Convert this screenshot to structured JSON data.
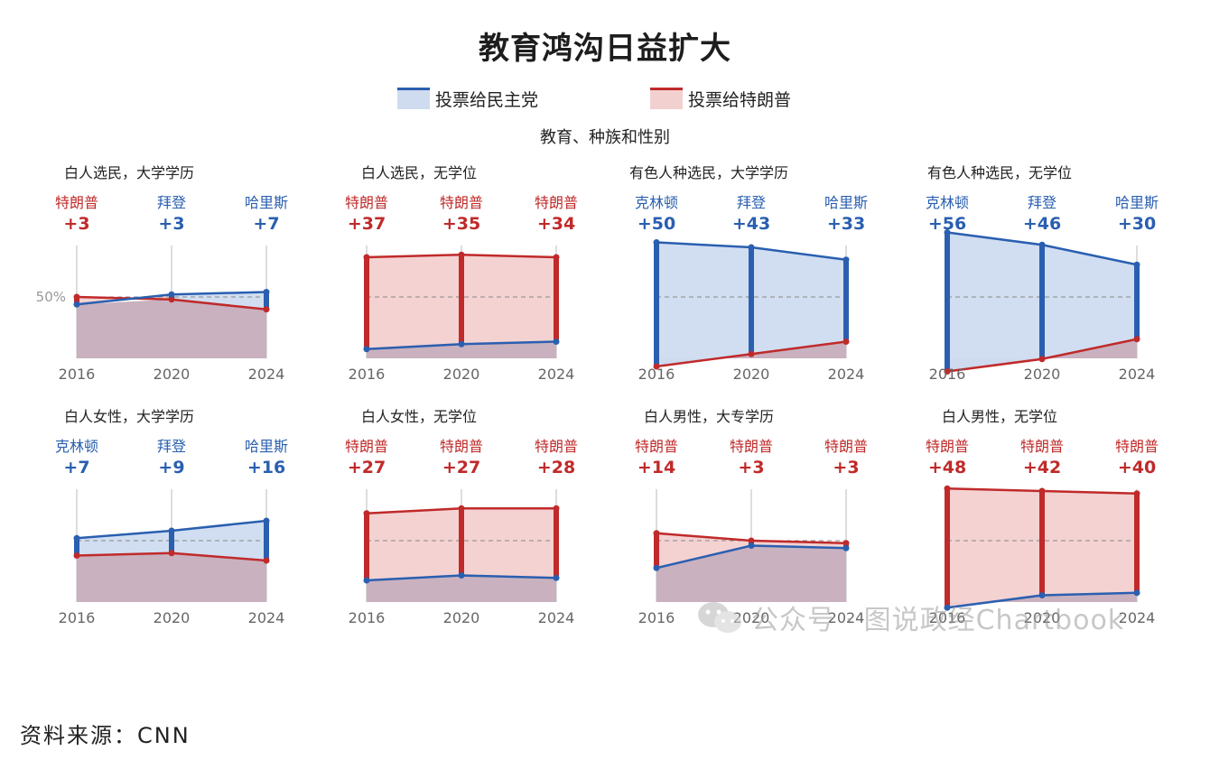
{
  "title": "教育鸿沟日益扩大",
  "subtitle": "教育、种族和性别",
  "legend": [
    {
      "label": "投票给民主党",
      "color": "#2a5fb0",
      "fill": "#cfdcf0"
    },
    {
      "label": "投票给特朗普",
      "color": "#c02a2a",
      "fill": "#f3d0d0"
    }
  ],
  "colors": {
    "dem": "#2a5fb0",
    "rep": "#c02a2a",
    "dem_fill": "#cfdcf0",
    "rep_fill": "#f3d0d0",
    "base_fill": "#c9b1bf",
    "axis": "#bbbbbb",
    "ref_line": "#888888"
  },
  "reference_label": "50%",
  "source": "资料来源：CNN",
  "watermark": "公众号 · 图说政经Chartbook",
  "chart_data": [
    {
      "type": "area",
      "title": "白人选民，大学学历",
      "x": [
        "2016",
        "2020",
        "2024"
      ],
      "series": [
        {
          "name": "",
          "values": [
            47,
            51,
            52
          ]
        },
        {
          "name": "",
          "values": [
            50,
            49,
            45
          ]
        }
      ],
      "labels": [
        {
          "name": "特朗普",
          "margin": "+3",
          "party": "rep"
        },
        {
          "name": "拜登",
          "margin": "+3",
          "party": "dem"
        },
        {
          "name": "哈里斯",
          "margin": "+7",
          "party": "dem"
        }
      ],
      "ylim": [
        0,
        100
      ]
    },
    {
      "type": "area",
      "title": "白人选民，无学位",
      "x": [
        "2016",
        "2020",
        "2024"
      ],
      "series": [
        {
          "name": "",
          "values": [
            29,
            31,
            32
          ]
        },
        {
          "name": "",
          "values": [
            66,
            67,
            66
          ]
        }
      ],
      "labels": [
        {
          "name": "特朗普",
          "margin": "+37",
          "party": "rep"
        },
        {
          "name": "特朗普",
          "margin": "+35",
          "party": "rep"
        },
        {
          "name": "特朗普",
          "margin": "+34",
          "party": "rep"
        }
      ],
      "ylim": [
        0,
        100
      ]
    },
    {
      "type": "area",
      "title": "有色人种选民，大学学历",
      "x": [
        "2016",
        "2020",
        "2024"
      ],
      "series": [
        {
          "name": "",
          "values": [
            72,
            70,
            65
          ]
        },
        {
          "name": "",
          "values": [
            22,
            27,
            32
          ]
        }
      ],
      "labels": [
        {
          "name": "克林顿",
          "margin": "+50",
          "party": "dem"
        },
        {
          "name": "拜登",
          "margin": "+43",
          "party": "dem"
        },
        {
          "name": "哈里斯",
          "margin": "+33",
          "party": "dem"
        }
      ],
      "ylim": [
        0,
        100
      ]
    },
    {
      "type": "area",
      "title": "有色人种选民，无学位",
      "x": [
        "2016",
        "2020",
        "2024"
      ],
      "series": [
        {
          "name": "",
          "values": [
            76,
            71,
            63
          ]
        },
        {
          "name": "",
          "values": [
            20,
            25,
            33
          ]
        }
      ],
      "labels": [
        {
          "name": "克林顿",
          "margin": "+56",
          "party": "dem"
        },
        {
          "name": "拜登",
          "margin": "+46",
          "party": "dem"
        },
        {
          "name": "哈里斯",
          "margin": "+30",
          "party": "dem"
        }
      ],
      "ylim": [
        0,
        100
      ]
    },
    {
      "type": "area",
      "title": "白人女性，大学学历",
      "x": [
        "2016",
        "2020",
        "2024"
      ],
      "series": [
        {
          "name": "",
          "values": [
            51,
            54,
            58
          ]
        },
        {
          "name": "",
          "values": [
            44,
            45,
            42
          ]
        }
      ],
      "labels": [
        {
          "name": "克林顿",
          "margin": "+7",
          "party": "dem"
        },
        {
          "name": "拜登",
          "margin": "+9",
          "party": "dem"
        },
        {
          "name": "哈里斯",
          "margin": "+16",
          "party": "dem"
        }
      ],
      "ylim": [
        0,
        100
      ]
    },
    {
      "type": "area",
      "title": "白人女性，无学位",
      "x": [
        "2016",
        "2020",
        "2024"
      ],
      "series": [
        {
          "name": "",
          "values": [
            34,
            36,
            35
          ]
        },
        {
          "name": "",
          "values": [
            61,
            63,
            63
          ]
        }
      ],
      "labels": [
        {
          "name": "特朗普",
          "margin": "+27",
          "party": "rep"
        },
        {
          "name": "特朗普",
          "margin": "+27",
          "party": "rep"
        },
        {
          "name": "特朗普",
          "margin": "+28",
          "party": "rep"
        }
      ],
      "ylim": [
        0,
        100
      ]
    },
    {
      "type": "area",
      "title": "白人男性，大专学历",
      "x": [
        "2016",
        "2020",
        "2024"
      ],
      "series": [
        {
          "name": "",
          "values": [
            39,
            48,
            47
          ]
        },
        {
          "name": "",
          "values": [
            53,
            50,
            49
          ]
        }
      ],
      "labels": [
        {
          "name": "特朗普",
          "margin": "+14",
          "party": "rep"
        },
        {
          "name": "特朗普",
          "margin": "+3",
          "party": "rep"
        },
        {
          "name": "特朗普",
          "margin": "+3",
          "party": "rep"
        }
      ],
      "ylim": [
        0,
        100
      ]
    },
    {
      "type": "area",
      "title": "白人男性，无学位",
      "x": [
        "2016",
        "2020",
        "2024"
      ],
      "series": [
        {
          "name": "",
          "values": [
            23,
            28,
            29
          ]
        },
        {
          "name": "",
          "values": [
            71,
            70,
            69
          ]
        }
      ],
      "labels": [
        {
          "name": "特朗普",
          "margin": "+48",
          "party": "rep"
        },
        {
          "name": "特朗普",
          "margin": "+42",
          "party": "rep"
        },
        {
          "name": "特朗普",
          "margin": "+40",
          "party": "rep"
        }
      ],
      "ylim": [
        0,
        100
      ]
    }
  ]
}
